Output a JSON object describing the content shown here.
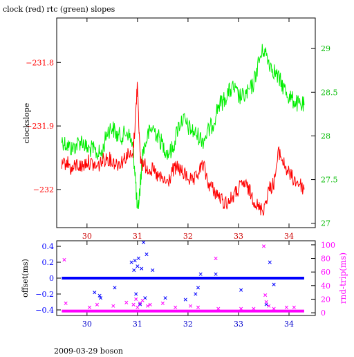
{
  "page": {
    "title": "clock (red) rtc (green) slopes",
    "footer": "2009-03-29 boson"
  },
  "colors": {
    "clock": "#ff0000",
    "rtc": "#00ee00",
    "offset": "#0000ff",
    "rndtrip": "#ff00ff",
    "axis": "#000000"
  },
  "chart_data": [
    {
      "type": "line",
      "title": "clock (red) rtc (green) slopes",
      "x_range": [
        29.4,
        34.52
      ],
      "x_ticks": [
        30,
        31,
        32,
        33,
        34
      ],
      "ylabel_left": "clockslope",
      "ylim_left": [
        -232.06,
        -231.73
      ],
      "yticks_left": [
        -231.8,
        -231.9,
        -232
      ],
      "ylim_right": [
        26.95,
        29.35
      ],
      "yticks_right": [
        29,
        28.5,
        28,
        27.5,
        27
      ],
      "grid": false,
      "series": [
        {
          "color": "red",
          "axis": "left",
          "x": [
            29.5,
            29.6,
            29.7,
            29.8,
            29.9,
            30.0,
            30.1,
            30.2,
            30.3,
            30.4,
            30.5,
            30.6,
            30.7,
            30.8,
            30.9,
            30.95,
            31.0,
            31.05,
            31.1,
            31.2,
            31.3,
            31.4,
            31.5,
            31.6,
            31.7,
            31.8,
            31.9,
            32.0,
            32.1,
            32.2,
            32.3,
            32.4,
            32.5,
            32.6,
            32.7,
            32.8,
            32.9,
            33.0,
            33.1,
            33.2,
            33.3,
            33.4,
            33.5,
            33.6,
            33.7,
            33.8,
            33.9,
            34.0,
            34.1,
            34.2,
            34.3
          ],
          "y": [
            -231.965,
            -231.955,
            -231.97,
            -231.96,
            -231.965,
            -231.955,
            -231.96,
            -231.965,
            -231.955,
            -231.95,
            -231.955,
            -231.96,
            -231.955,
            -231.945,
            -231.95,
            -231.9,
            -231.83,
            -231.95,
            -231.96,
            -231.965,
            -231.97,
            -231.98,
            -231.985,
            -231.99,
            -231.97,
            -231.965,
            -231.975,
            -231.98,
            -231.99,
            -231.975,
            -231.96,
            -231.99,
            -232.0,
            -232.01,
            -232.02,
            -232.02,
            -232.01,
            -232.0,
            -231.99,
            -232.0,
            -232.015,
            -232.03,
            -232.03,
            -232.0,
            -231.99,
            -231.94,
            -231.96,
            -231.975,
            -231.985,
            -231.99,
            -232.0
          ]
        },
        {
          "color": "green",
          "axis": "right",
          "x": [
            29.5,
            29.6,
            29.7,
            29.8,
            29.9,
            30.0,
            30.1,
            30.2,
            30.3,
            30.4,
            30.5,
            30.6,
            30.7,
            30.8,
            30.9,
            30.95,
            31.0,
            31.05,
            31.1,
            31.2,
            31.3,
            31.4,
            31.5,
            31.6,
            31.7,
            31.8,
            31.9,
            32.0,
            32.1,
            32.2,
            32.3,
            32.4,
            32.5,
            32.6,
            32.7,
            32.8,
            32.9,
            33.0,
            33.1,
            33.2,
            33.3,
            33.4,
            33.5,
            33.6,
            33.7,
            33.8,
            33.9,
            34.0,
            34.1,
            34.2,
            34.3
          ],
          "y": [
            27.95,
            27.9,
            27.85,
            27.9,
            27.95,
            27.85,
            27.85,
            27.8,
            27.8,
            28.05,
            28.1,
            28.0,
            28.0,
            28.05,
            27.9,
            27.6,
            27.1,
            27.4,
            27.8,
            28.0,
            28.1,
            28.0,
            27.9,
            27.8,
            27.85,
            28.1,
            28.2,
            28.1,
            28.05,
            28.0,
            27.95,
            28.05,
            28.15,
            28.35,
            28.4,
            28.5,
            28.55,
            28.45,
            28.45,
            28.5,
            28.6,
            28.85,
            29.0,
            28.85,
            28.75,
            28.65,
            28.55,
            28.45,
            28.4,
            28.35,
            28.35
          ]
        }
      ]
    },
    {
      "type": "scatter",
      "x_range": [
        29.4,
        34.52
      ],
      "x_ticks": [
        30,
        31,
        32,
        33,
        34
      ],
      "ylabel_left": "offset(ms)",
      "ylim_left": [
        -0.47,
        0.47
      ],
      "yticks_left": [
        0.4,
        0.2,
        0,
        -0.2,
        -0.4
      ],
      "ylabel_right": "rnd-trip(ms)",
      "ylim_right": [
        -4,
        106
      ],
      "yticks_right": [
        100,
        80,
        60,
        40,
        20,
        0
      ],
      "grid": false,
      "series": [
        {
          "color": "blue",
          "marker": "x",
          "axis": "left",
          "x": [
            30.15,
            30.25,
            30.27,
            30.55,
            30.88,
            30.93,
            30.95,
            30.97,
            31.0,
            31.02,
            31.05,
            31.08,
            31.12,
            31.15,
            31.18,
            31.3,
            31.55,
            31.95,
            32.15,
            32.2,
            32.25,
            32.55,
            33.05,
            33.55,
            33.62,
            33.7
          ],
          "y": [
            -0.18,
            -0.22,
            -0.25,
            -0.12,
            0.2,
            0.1,
            0.22,
            -0.2,
            0.15,
            0.25,
            -0.33,
            0.12,
            0.45,
            -0.25,
            0.3,
            0.1,
            -0.25,
            -0.27,
            -0.2,
            -0.12,
            0.05,
            0.05,
            -0.15,
            -0.33,
            0.2,
            -0.08
          ]
        },
        {
          "color": "magenta",
          "marker": "x",
          "axis": "right",
          "x": [
            29.55,
            29.58,
            30.05,
            30.2,
            30.52,
            30.78,
            30.92,
            30.97,
            31.0,
            31.05,
            31.1,
            31.2,
            31.25,
            31.5,
            31.75,
            32.05,
            32.2,
            32.55,
            32.6,
            33.05,
            33.3,
            33.5,
            33.53,
            33.55,
            33.6,
            33.7,
            33.95,
            34.1
          ],
          "y": [
            78,
            14,
            8,
            12,
            10,
            15,
            12,
            20,
            8,
            14,
            18,
            10,
            12,
            14,
            8,
            10,
            8,
            80,
            6,
            6,
            6,
            98,
            26,
            16,
            10,
            6,
            8,
            8
          ]
        }
      ]
    }
  ]
}
